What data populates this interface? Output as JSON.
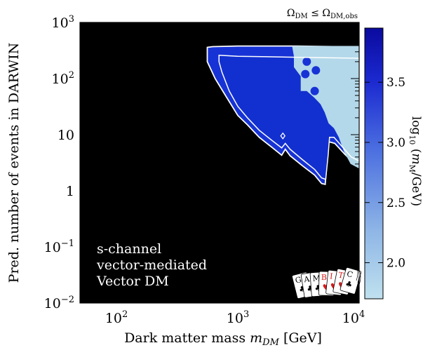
{
  "chart_data": {
    "type": "heatmap",
    "title": "Ω_DM ≤ Ω_DM,obs",
    "xlabel": "Dark matter mass m_DM [GeV]",
    "ylabel": "Pred. number of events in DARWIN",
    "xscale": "log",
    "yscale": "log",
    "xlim": [
      50,
      10000
    ],
    "ylim": [
      0.01,
      1000
    ],
    "x_ticks": [
      {
        "value": 100,
        "base": "10",
        "exp": "2"
      },
      {
        "value": 1000,
        "base": "10",
        "exp": "3"
      },
      {
        "value": 10000,
        "base": "10",
        "exp": "4"
      }
    ],
    "y_ticks": [
      {
        "value": 0.01,
        "base": "10",
        "exp": "−2"
      },
      {
        "value": 0.1,
        "base": "10",
        "exp": "−1"
      },
      {
        "value": 1,
        "text": "1"
      },
      {
        "value": 10,
        "text": "10"
      },
      {
        "value": 100,
        "base": "10",
        "exp": "2"
      },
      {
        "value": 1000,
        "base": "10",
        "exp": "3"
      }
    ],
    "colorbar": {
      "label": "log₁₀ (m_M/GeV)",
      "range": [
        1.7,
        3.95
      ],
      "ticks": [
        "2.0",
        "2.5",
        "3.0",
        "3.5"
      ],
      "color_low": "#bfe1ee",
      "color_high": "#0a0a9e"
    },
    "region_outer": [
      [
        560,
        360
      ],
      [
        620,
        370
      ],
      [
        1000,
        380
      ],
      [
        3000,
        380
      ],
      [
        6000,
        372
      ],
      [
        10000,
        370
      ],
      [
        10000,
        2.8
      ],
      [
        8800,
        3.3
      ],
      [
        7600,
        4.5
      ],
      [
        6300,
        7
      ],
      [
        5600,
        7.5
      ],
      [
        5450,
        3.5
      ],
      [
        5250,
        1.3
      ],
      [
        4900,
        1.35
      ],
      [
        4300,
        1.9
      ],
      [
        3400,
        2.8
      ],
      [
        2700,
        4.2
      ],
      [
        2460,
        5.5
      ],
      [
        2300,
        4.3
      ],
      [
        1900,
        6
      ],
      [
        1500,
        9
      ],
      [
        1200,
        15
      ],
      [
        1000,
        22
      ],
      [
        800,
        48
      ],
      [
        650,
        100
      ],
      [
        560,
        200
      ]
    ],
    "region_inner": [
      [
        700,
        260
      ],
      [
        1000,
        250
      ],
      [
        3000,
        240
      ],
      [
        10000,
        230
      ],
      [
        10000,
        3.4
      ],
      [
        8600,
        4
      ],
      [
        7300,
        6
      ],
      [
        6200,
        9
      ],
      [
        5700,
        9
      ],
      [
        5550,
        4.3
      ],
      [
        5300,
        1.6
      ],
      [
        4900,
        1.7
      ],
      [
        4300,
        2.4
      ],
      [
        3400,
        3.6
      ],
      [
        2700,
        5.5
      ],
      [
        2460,
        7
      ],
      [
        2300,
        5.8
      ],
      [
        1900,
        8
      ],
      [
        1500,
        12
      ],
      [
        1200,
        20
      ],
      [
        1000,
        32
      ],
      [
        850,
        60
      ],
      [
        740,
        130
      ],
      [
        700,
        200
      ]
    ],
    "region_light": [
      [
        2800,
        380
      ],
      [
        10000,
        380
      ],
      [
        10000,
        2.5
      ],
      [
        8500,
        3
      ],
      [
        7500,
        5
      ],
      [
        6800,
        9
      ],
      [
        6200,
        13
      ],
      [
        5600,
        16
      ],
      [
        5200,
        25
      ],
      [
        4800,
        35
      ],
      [
        4300,
        45
      ],
      [
        3700,
        60
      ],
      [
        3300,
        60
      ],
      [
        3300,
        110
      ],
      [
        2900,
        160
      ],
      [
        2900,
        250
      ]
    ],
    "blobs": [
      {
        "x": 3600,
        "y": 120
      },
      {
        "x": 4400,
        "y": 140
      },
      {
        "x": 3700,
        "y": 200
      },
      {
        "x": 4300,
        "y": 60
      }
    ],
    "open_point": {
      "x": 2350,
      "y": 9.5
    },
    "annotation": [
      "s-channel",
      "vector-mediated",
      "Vector DM"
    ],
    "logo_letters": [
      "G",
      "A",
      "M",
      "B",
      "I",
      "T",
      "C"
    ]
  }
}
